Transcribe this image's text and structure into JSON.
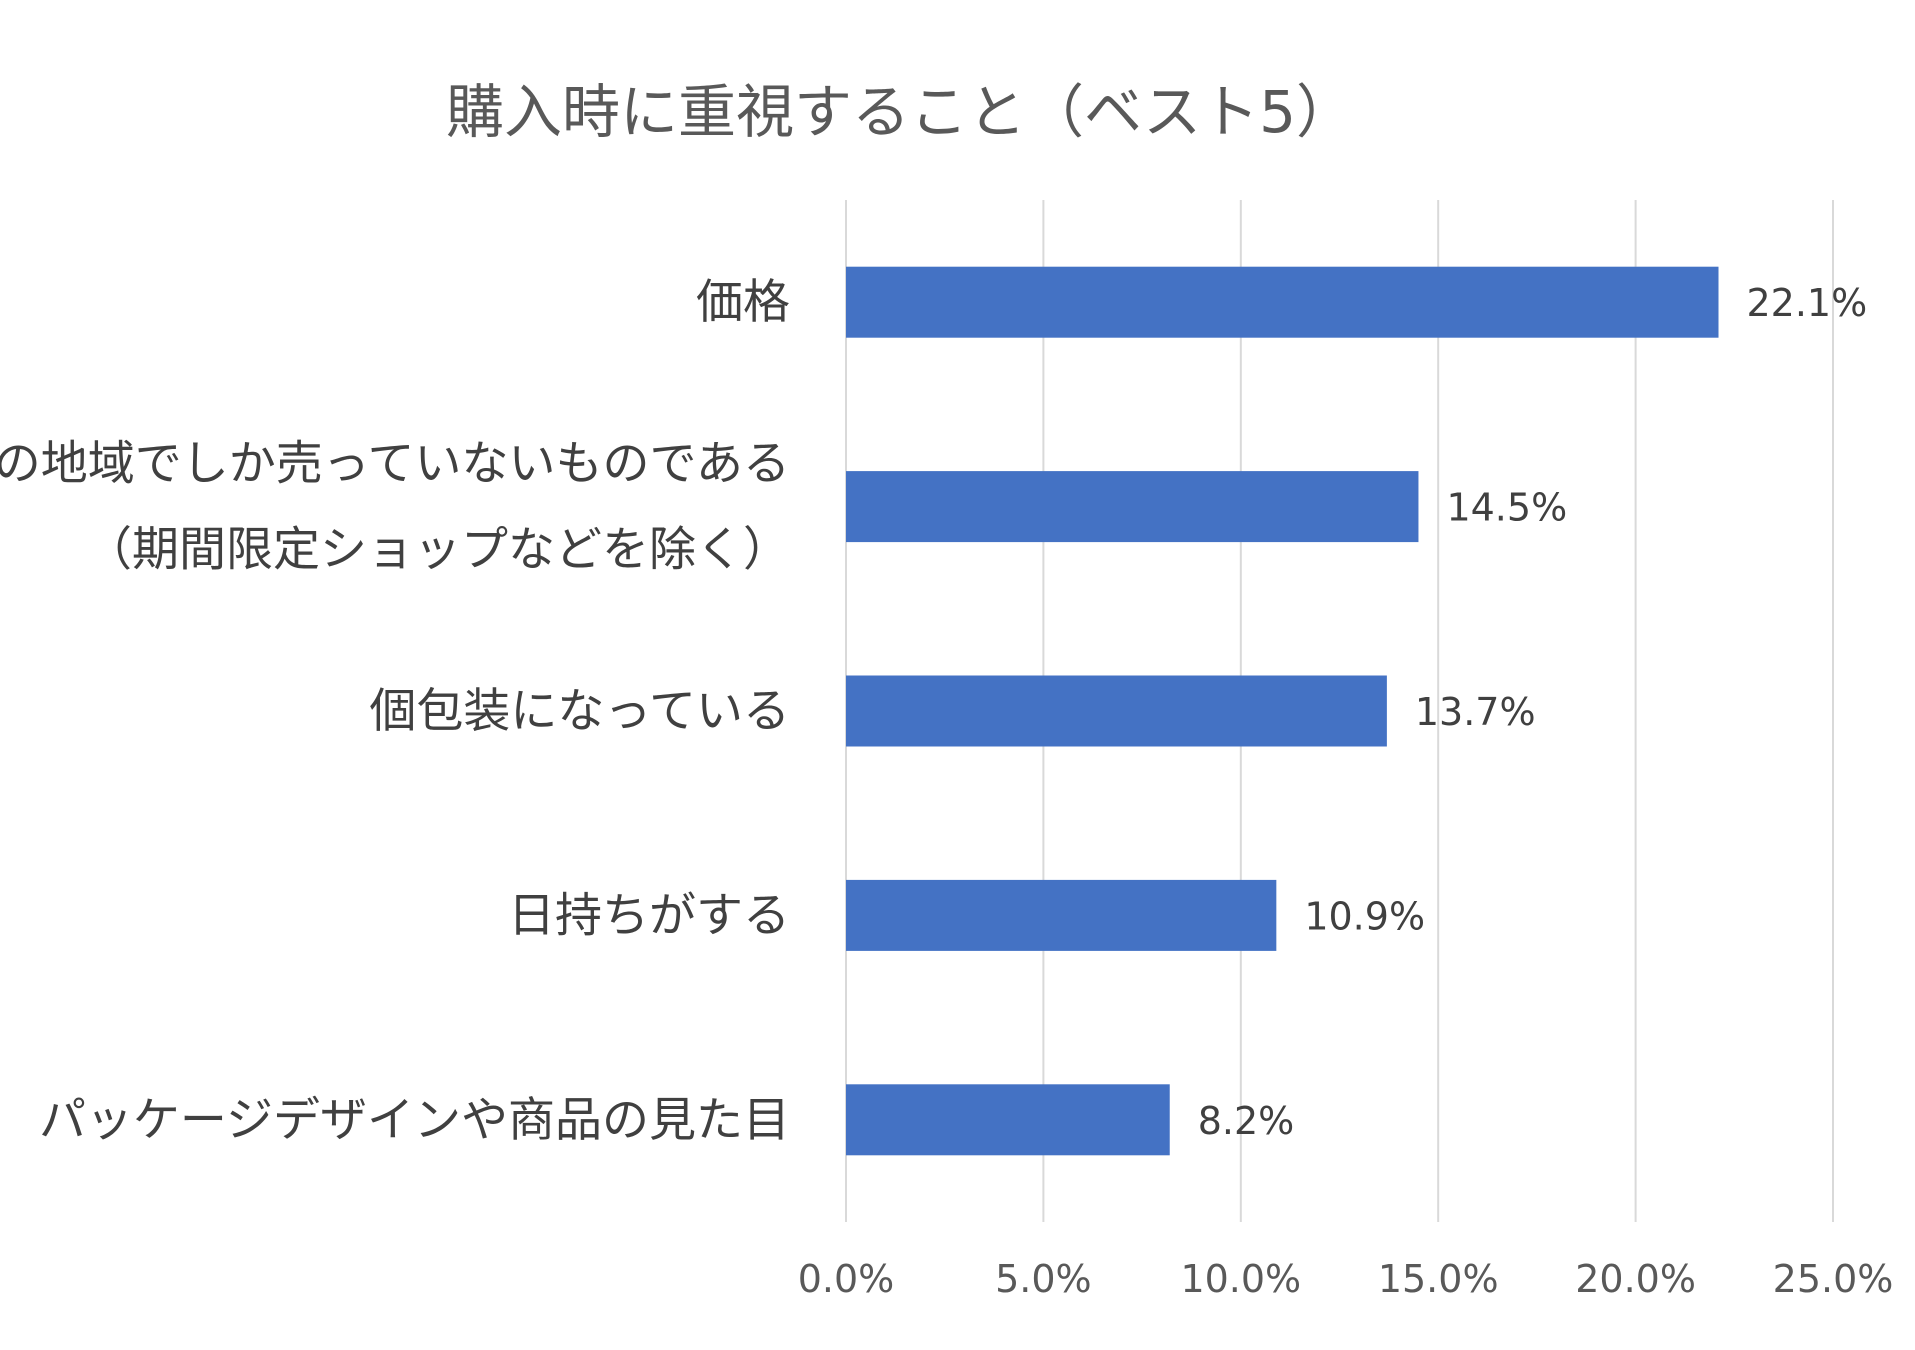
{
  "chart_data": {
    "type": "bar",
    "orientation": "horizontal",
    "title": "購入時に重視すること（ベスト5）",
    "categories": [
      [
        "価格"
      ],
      [
        "その地域でしか売っていないものである",
        "（期間限定ショップなどを除く）"
      ],
      [
        "個包装になっている"
      ],
      [
        "日持ちがする"
      ],
      [
        "パッケージデザインや商品の見た目"
      ]
    ],
    "values": [
      22.1,
      14.5,
      13.7,
      10.9,
      8.2
    ],
    "value_labels": [
      "22.1%",
      "14.5%",
      "13.7%",
      "10.9%",
      "8.2%"
    ],
    "xlim": [
      0,
      25
    ],
    "ticks": [
      0,
      5,
      10,
      15,
      20,
      25
    ],
    "tick_labels": [
      "0.0%",
      "5.0%",
      "10.0%",
      "15.0%",
      "20.0%",
      "25.0%"
    ],
    "grid": true,
    "legend": "none",
    "bar_color": "#4472c4"
  }
}
